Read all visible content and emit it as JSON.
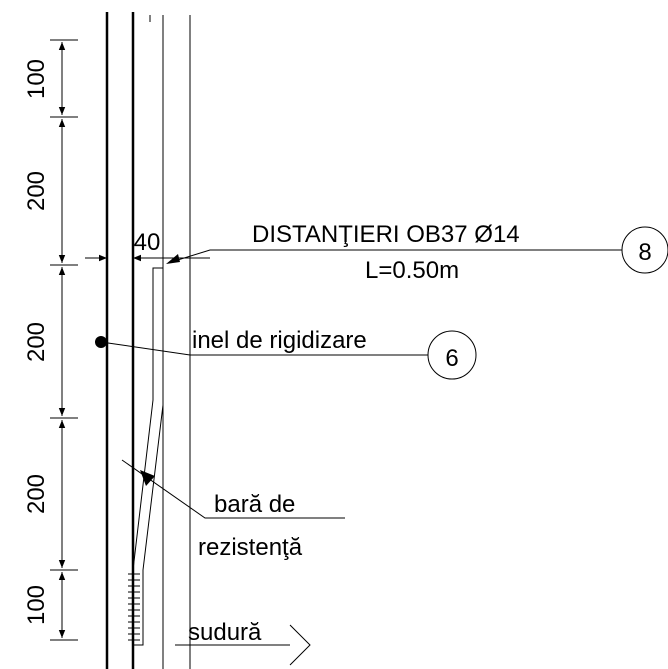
{
  "dimensions": {
    "vertical": [
      "100",
      "200",
      "200",
      "200",
      "100"
    ],
    "horizontal": "40"
  },
  "callouts": {
    "spacer": {
      "label": "DISTANŢIERI  OB37 Ø14",
      "sublabel": "L=0.50m",
      "number": "8"
    },
    "ring": {
      "label": "inel de rigidizare",
      "number": "6"
    },
    "bar": {
      "line1": "bară de",
      "line2": "rezistenţă"
    },
    "weld": {
      "label": "sudură"
    }
  }
}
